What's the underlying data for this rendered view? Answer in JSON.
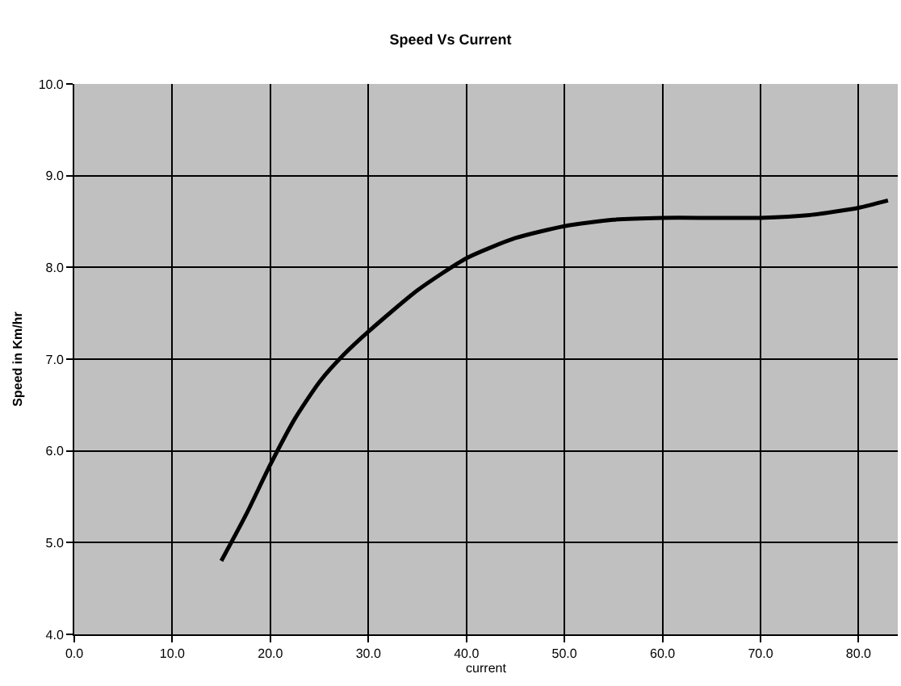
{
  "chart_data": {
    "type": "line",
    "title": "Speed Vs Current",
    "xlabel": "current",
    "ylabel": "Speed in Km/hr",
    "x": [
      15,
      17.5,
      20,
      22.5,
      25,
      27.5,
      30,
      35,
      40,
      45,
      50,
      55,
      60,
      65,
      70,
      75,
      80,
      83
    ],
    "series": [
      {
        "color": "#000000",
        "values": [
          4.8,
          5.3,
          5.85,
          6.35,
          6.75,
          7.05,
          7.3,
          7.75,
          8.1,
          8.32,
          8.45,
          8.52,
          8.54,
          8.54,
          8.54,
          8.57,
          8.65,
          8.73
        ]
      }
    ],
    "xlim": [
      0,
      84
    ],
    "xticks": [
      {
        "value": 0,
        "label": "0.0"
      },
      {
        "value": 10,
        "label": "10.0"
      },
      {
        "value": 20,
        "label": "20.0"
      },
      {
        "value": 30,
        "label": "30.0"
      },
      {
        "value": 40,
        "label": "40.0"
      },
      {
        "value": 50,
        "label": "50.0"
      },
      {
        "value": 60,
        "label": "60.0"
      },
      {
        "value": 70,
        "label": "70.0"
      },
      {
        "value": 80,
        "label": "80.0"
      }
    ],
    "ylim": [
      4,
      10
    ],
    "yticks": [
      {
        "value": 4,
        "label": "4.0"
      },
      {
        "value": 5,
        "label": "5.0"
      },
      {
        "value": 6,
        "label": "6.0"
      },
      {
        "value": 7,
        "label": "7.0"
      },
      {
        "value": 8,
        "label": "8.0"
      },
      {
        "value": 9,
        "label": "9.0"
      },
      {
        "value": 10,
        "label": "10.0"
      }
    ],
    "grid": true,
    "marker": "none",
    "line_style": "solid"
  }
}
